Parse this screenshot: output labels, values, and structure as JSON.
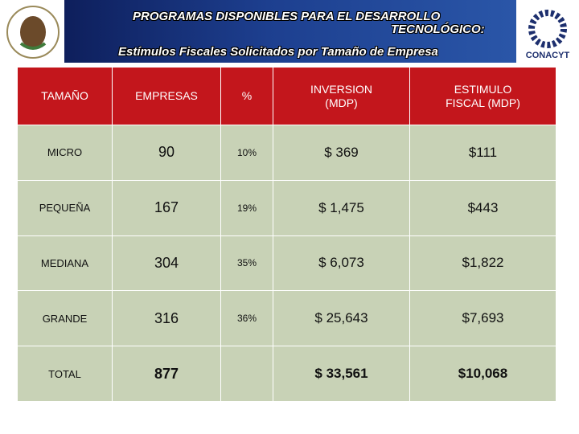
{
  "header": {
    "title_line1": "PROGRAMAS DISPONIBLES PARA EL DESARROLLO",
    "title_line2": "TECNOLÓGICO:",
    "subtitle": "Estímulos Fiscales Solicitados por Tamaño de Empresa",
    "logo_text": "CONACYT"
  },
  "table": {
    "columns": [
      "TAMAÑO",
      "EMPRESAS",
      "%",
      "INVERSION (MDP)",
      "ESTIMULO FISCAL (MDP)"
    ],
    "rows": [
      [
        "MICRO",
        "90",
        "10%",
        "$ 369",
        "$111"
      ],
      [
        "PEQUEÑA",
        "167",
        "19%",
        "$ 1,475",
        "$443"
      ],
      [
        "MEDIANA",
        "304",
        "35%",
        "$ 6,073",
        "$1,822"
      ],
      [
        "GRANDE",
        "316",
        "36%",
        "$ 25,643",
        "$7,693"
      ],
      [
        "TOTAL",
        "877",
        "",
        "$ 33,561",
        "$10,068"
      ]
    ]
  }
}
